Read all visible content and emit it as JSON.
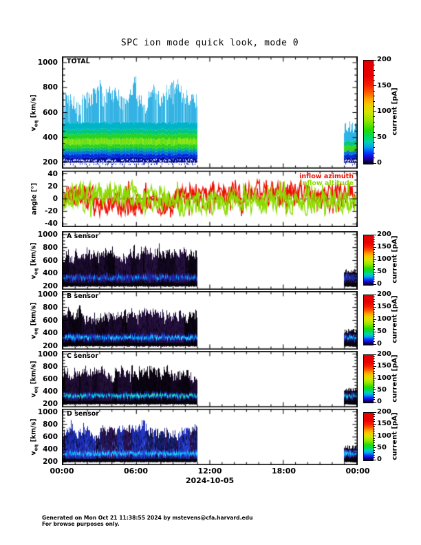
{
  "chart_data": {
    "type": "heatmap",
    "subtype": "multipanel-spectrogram-quicklook",
    "title": "SPC ion mode quick look, mode 0",
    "x_axis": {
      "range_hours": [
        0,
        24
      ],
      "major_ticks": [
        "00:00",
        "06:00",
        "12:00",
        "18:00",
        "00:00"
      ],
      "minor_tick_interval_hours": 1,
      "date_label": "2024-10-05"
    },
    "colorbar": {
      "label": "current [pA]",
      "range": [
        0,
        200
      ],
      "values": [
        0,
        50,
        100,
        150,
        200
      ],
      "tick_labels": [
        "0",
        "50",
        "100",
        "150",
        "200"
      ],
      "gradient": [
        [
          0.0,
          "#000000"
        ],
        [
          0.02,
          "#0a0050"
        ],
        [
          0.06,
          "#2000c8"
        ],
        [
          0.11,
          "#0040ff"
        ],
        [
          0.16,
          "#00a0f0"
        ],
        [
          0.21,
          "#00d2b4"
        ],
        [
          0.27,
          "#00dc50"
        ],
        [
          0.33,
          "#28dc00"
        ],
        [
          0.42,
          "#96e600"
        ],
        [
          0.5,
          "#d2e600"
        ],
        [
          0.57,
          "#f0cd00"
        ],
        [
          0.63,
          "#ffa000"
        ],
        [
          0.69,
          "#ff5a00"
        ],
        [
          0.76,
          "#f52000"
        ],
        [
          0.85,
          "#e80000"
        ],
        [
          1.0,
          "#e00000"
        ]
      ]
    },
    "data_coverage_hours": {
      "spectrograms": [
        [
          0,
          11
        ],
        [
          22.9,
          24
        ]
      ],
      "angles": [
        [
          0,
          24
        ]
      ]
    },
    "panels": [
      {
        "id": "total",
        "kind": "spectrogram",
        "style": "bright",
        "label": "TOTAL",
        "ylabel_base": "v",
        "ylabel_sub": "eq",
        "ylabel_rest": " [km/s]",
        "ylim": [
          150,
          1050
        ],
        "yticks": [
          200,
          400,
          600,
          800,
          1000
        ],
        "ytick_labels": [
          "200",
          "400",
          "600",
          "800",
          "1000"
        ],
        "minor_step": 50,
        "summary": "Bulk solar-wind band ~280-430 km/s in green (~50-80 pA); halo of cyan spikes up to ~880 km/s (~10-30 pA); dark blue floor 200-280 km/s; data gap ~11:00-22:54."
      },
      {
        "id": "angle",
        "kind": "line",
        "label": "",
        "ylabel": "angle [°]",
        "ylim": [
          -45,
          45
        ],
        "yticks": [
          -40,
          -20,
          0,
          20,
          40
        ],
        "ytick_labels": [
          "-40",
          "-20",
          "0",
          "20",
          "40"
        ],
        "minor_step": 10,
        "zero_line_dashed": true,
        "series": [
          {
            "name": "inflow azimuth",
            "color": "#ee1000",
            "range_deg": [
              -25,
              32
            ]
          },
          {
            "name": "inflow altitude",
            "color": "#8cdc00",
            "range_deg": [
              -28,
              25
            ]
          }
        ],
        "summary": "Both flow angles oscillate rapidly about 0 deg within roughly +/-30 deg for the full day."
      },
      {
        "id": "sensor-a",
        "kind": "spectrogram",
        "style": "dark-a",
        "label": "A sensor",
        "ylabel_base": "v",
        "ylabel_sub": "eq",
        "ylabel_rest": " [km/s]",
        "ylim": [
          150,
          1050
        ],
        "yticks": [
          200,
          400,
          600,
          800,
          1000
        ],
        "ytick_labels": [
          "200",
          "400",
          "600",
          "800",
          "1000"
        ],
        "minor_step": 50,
        "summary": "Faint dark-violet spectrogram with intermittent blue/cyan core near 300-420 km/s."
      },
      {
        "id": "sensor-b",
        "kind": "spectrogram",
        "style": "dark-b",
        "label": "B sensor",
        "ylabel_base": "v",
        "ylabel_sub": "eq",
        "ylabel_rest": " [km/s]",
        "ylim": [
          150,
          1050
        ],
        "yticks": [
          200,
          400,
          600,
          800,
          1000
        ],
        "ytick_labels": [
          "200",
          "400",
          "600",
          "800",
          "1000"
        ],
        "minor_step": 50,
        "summary": "Dark-violet background with brighter continuous cyan band near 300-400 km/s."
      },
      {
        "id": "sensor-c",
        "kind": "spectrogram",
        "style": "dark-c",
        "label": "C sensor",
        "ylabel_base": "v",
        "ylabel_sub": "eq",
        "ylabel_rest": " [km/s]",
        "ylim": [
          150,
          1050
        ],
        "yticks": [
          200,
          400,
          600,
          800,
          1000
        ],
        "ytick_labels": [
          "200",
          "400",
          "600",
          "800",
          "1000"
        ],
        "minor_step": 50,
        "summary": "Dark-violet background with cyan-green band near 350 km/s."
      },
      {
        "id": "sensor-d",
        "kind": "spectrogram",
        "style": "blue-d",
        "label": "D sensor",
        "ylabel_base": "v",
        "ylabel_sub": "eq",
        "ylabel_rest": " [km/s]",
        "ylim": [
          150,
          1050
        ],
        "yticks": [
          200,
          400,
          600,
          800,
          1000
        ],
        "ytick_labels": [
          "200",
          "400",
          "600",
          "800",
          "1000"
        ],
        "minor_step": 50,
        "summary": "Overall brighter blue columns to ~880 km/s with cyan band near 350 km/s and dark purple patches."
      }
    ],
    "footer": [
      "Generated on Mon Oct 21 11:38:55 2024 by mstevens@cfa.harvard.edu",
      "For browse purposes only."
    ]
  }
}
